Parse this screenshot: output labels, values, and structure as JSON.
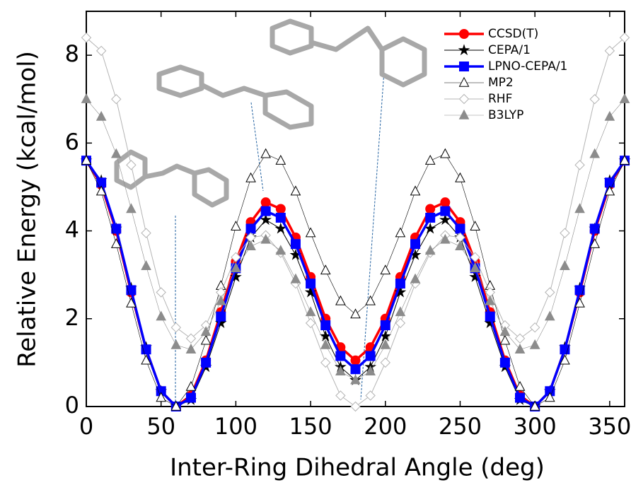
{
  "chart_data": {
    "type": "line",
    "x_label": "Inter-Ring Dihedral Angle (deg)",
    "y_label": "Relative Energy (kcal/mol)",
    "x": [
      0,
      10,
      20,
      30,
      40,
      50,
      60,
      70,
      80,
      90,
      100,
      110,
      120,
      130,
      140,
      150,
      160,
      170,
      180,
      190,
      200,
      210,
      220,
      230,
      240,
      250,
      260,
      270,
      280,
      290,
      300,
      310,
      320,
      330,
      340,
      350,
      360
    ],
    "xlim": [
      0,
      360
    ],
    "xticks": [
      0,
      50,
      100,
      150,
      200,
      250,
      300,
      350
    ],
    "ylim": [
      0,
      9
    ],
    "yticks": [
      0,
      2,
      4,
      6,
      8
    ],
    "legend": "upper right",
    "series": [
      {
        "name": "CCSD(T)",
        "color": "#ff0000",
        "marker": "circle",
        "filled": true,
        "line_width": 3.5,
        "values": [
          5.6,
          5.05,
          4.0,
          2.6,
          1.3,
          0.35,
          0,
          0.25,
          1.05,
          2.15,
          3.3,
          4.2,
          4.65,
          4.5,
          3.85,
          2.95,
          2.0,
          1.35,
          1.05,
          1.35,
          2.0,
          2.95,
          3.85,
          4.5,
          4.65,
          4.2,
          3.3,
          2.15,
          1.05,
          0.25,
          0,
          0.35,
          1.3,
          2.6,
          4.0,
          5.05,
          5.6
        ]
      },
      {
        "name": "CEPA/1",
        "color": "#000000",
        "marker": "star",
        "filled": true,
        "line_width": 1,
        "values": [
          5.6,
          5.15,
          4.05,
          2.7,
          1.35,
          0.35,
          0,
          0.15,
          0.9,
          1.9,
          2.95,
          3.85,
          4.25,
          4.05,
          3.45,
          2.6,
          1.6,
          0.9,
          0.6,
          0.9,
          1.6,
          2.6,
          3.45,
          4.05,
          4.25,
          3.85,
          2.95,
          1.9,
          0.9,
          0.15,
          0,
          0.35,
          1.35,
          2.7,
          4.05,
          5.15,
          5.6
        ]
      },
      {
        "name": "LPNO-CEPA/1",
        "color": "#0000ff",
        "marker": "square",
        "filled": true,
        "line_width": 3.5,
        "values": [
          5.6,
          5.1,
          4.05,
          2.65,
          1.3,
          0.35,
          0,
          0.2,
          1.0,
          2.05,
          3.15,
          4.05,
          4.45,
          4.3,
          3.7,
          2.8,
          1.85,
          1.15,
          0.85,
          1.15,
          1.85,
          2.8,
          3.7,
          4.3,
          4.45,
          4.05,
          3.15,
          2.05,
          1.0,
          0.2,
          0,
          0.35,
          1.3,
          2.65,
          4.05,
          5.1,
          5.6
        ]
      },
      {
        "name": "MP2",
        "color": "#000000",
        "marker": "triangle",
        "filled": false,
        "line_width": 0.6,
        "values": [
          5.6,
          4.9,
          3.7,
          2.35,
          1.05,
          0.2,
          0,
          0.45,
          1.5,
          2.75,
          4.1,
          5.2,
          5.75,
          5.6,
          4.9,
          3.95,
          3.1,
          2.4,
          2.1,
          2.4,
          3.1,
          3.95,
          4.9,
          5.6,
          5.75,
          5.2,
          4.1,
          2.75,
          1.5,
          0.45,
          0,
          0.2,
          1.05,
          2.35,
          3.7,
          4.9,
          5.6
        ]
      },
      {
        "name": "RHF",
        "color": "#b4b4b4",
        "marker": "diamond",
        "filled": false,
        "line_width": 1,
        "values": [
          8.4,
          8.1,
          7.0,
          5.5,
          3.95,
          2.6,
          1.8,
          1.55,
          1.85,
          2.6,
          3.4,
          3.85,
          3.9,
          3.5,
          2.8,
          1.9,
          1.0,
          0.25,
          0,
          0.25,
          1.0,
          1.9,
          2.8,
          3.5,
          3.9,
          3.85,
          3.4,
          2.6,
          1.85,
          1.55,
          1.8,
          2.6,
          3.95,
          5.5,
          7.0,
          8.1,
          8.4
        ]
      },
      {
        "name": "B3LYP",
        "color": "#8c8c8c",
        "marker": "triangle",
        "filled": true,
        "line_width": 0.6,
        "values": [
          7.0,
          6.6,
          5.75,
          4.5,
          3.2,
          2.05,
          1.4,
          1.3,
          1.7,
          2.4,
          3.15,
          3.65,
          3.8,
          3.55,
          2.9,
          2.15,
          1.4,
          0.8,
          0.6,
          0.8,
          1.4,
          2.15,
          2.9,
          3.55,
          3.8,
          3.65,
          3.15,
          2.4,
          1.7,
          1.3,
          1.4,
          2.05,
          3.2,
          4.5,
          5.75,
          6.6,
          7.0
        ]
      }
    ]
  }
}
